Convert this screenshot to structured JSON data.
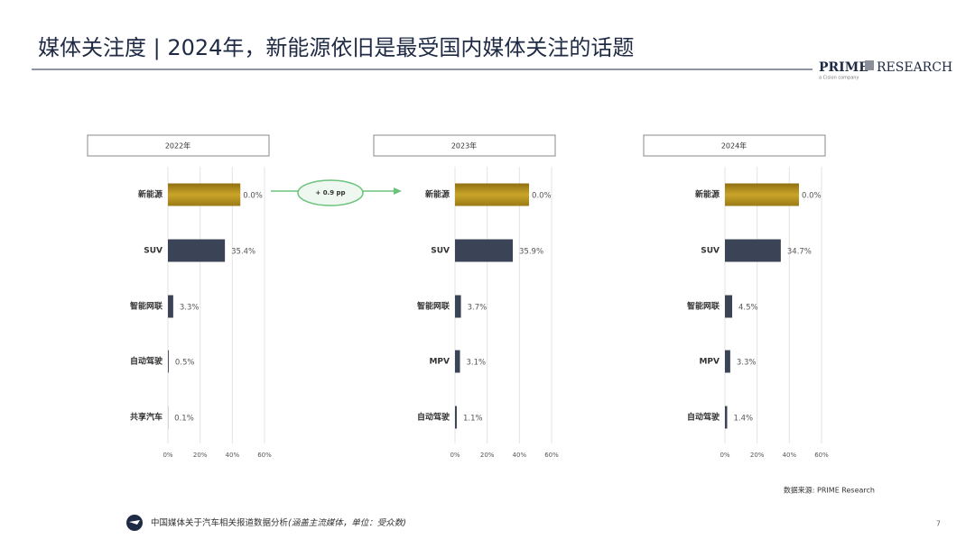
{
  "header": {
    "title": "媒体关注度 | 2024年，新能源依旧是最受国内媒体关注的话题",
    "logo": "PRIME",
    "logo_right": "RESEARCH",
    "logo_sub": "a Cision company"
  },
  "chart_data": [
    {
      "type": "bar",
      "title": "2022年",
      "categories": [
        "新能源",
        "SUV",
        "智能网联",
        "自动驾驶",
        "共享汽车"
      ],
      "values": [
        45,
        35.4,
        3.3,
        0.5,
        0.1
      ],
      "value_labels": [
        null,
        "35.4%",
        "3.3%",
        "0.5%",
        "0.1%"
      ],
      "note": "0.0%",
      "colors": [
        "#b8961f",
        "#3b4456",
        "#3b4456",
        "#3b4456",
        "#3b4456"
      ],
      "xlim": [
        0,
        60
      ],
      "xticks": [
        {
          "value": 0,
          "label": "0%"
        },
        {
          "value": 20,
          "label": "20%"
        },
        {
          "value": 40,
          "label": "40%"
        },
        {
          "value": 60,
          "label": "60%"
        }
      ],
      "grid": true
    },
    {
      "type": "bar",
      "title": "2023年",
      "categories": [
        "新能源",
        "SUV",
        "智能网联",
        "MPV",
        "自动驾驶"
      ],
      "values": [
        46,
        35.9,
        3.7,
        3.1,
        1.1
      ],
      "value_labels": [
        null,
        "35.9%",
        "3.7%",
        "3.1%",
        "1.1%"
      ],
      "note": "0.0%",
      "colors": [
        "#b8961f",
        "#3b4456",
        "#3b4456",
        "#3b4456",
        "#3b4456"
      ],
      "xlim": [
        0,
        60
      ],
      "xticks": [
        {
          "value": 0,
          "label": "0%"
        },
        {
          "value": 20,
          "label": "20%"
        },
        {
          "value": 40,
          "label": "40%"
        },
        {
          "value": 60,
          "label": "60%"
        }
      ],
      "grid": true
    },
    {
      "type": "bar",
      "title": "2024年",
      "categories": [
        "新能源",
        "SUV",
        "智能网联",
        "MPV",
        "自动驾驶"
      ],
      "values": [
        46,
        34.7,
        4.5,
        3.3,
        1.4
      ],
      "value_labels": [
        null,
        "34.7%",
        "4.5%",
        "3.3%",
        "1.4%"
      ],
      "note": "0.0%",
      "colors": [
        "#b8961f",
        "#3b4456",
        "#3b4456",
        "#3b4456",
        "#3b4456"
      ],
      "xlim": [
        0,
        60
      ],
      "xticks": [
        {
          "value": 0,
          "label": "0%"
        },
        {
          "value": 20,
          "label": "20%"
        },
        {
          "value": 40,
          "label": "40%"
        },
        {
          "value": 60,
          "label": "60%"
        }
      ],
      "grid": true
    }
  ],
  "annotation": "+ 0.9 pp",
  "source": "数据来源: PRIME Research",
  "footer": {
    "text": "中国媒体关于汽车相关报道数据分析",
    "note": "(涵盖主流媒体，单位：受众数)"
  },
  "page": "7"
}
